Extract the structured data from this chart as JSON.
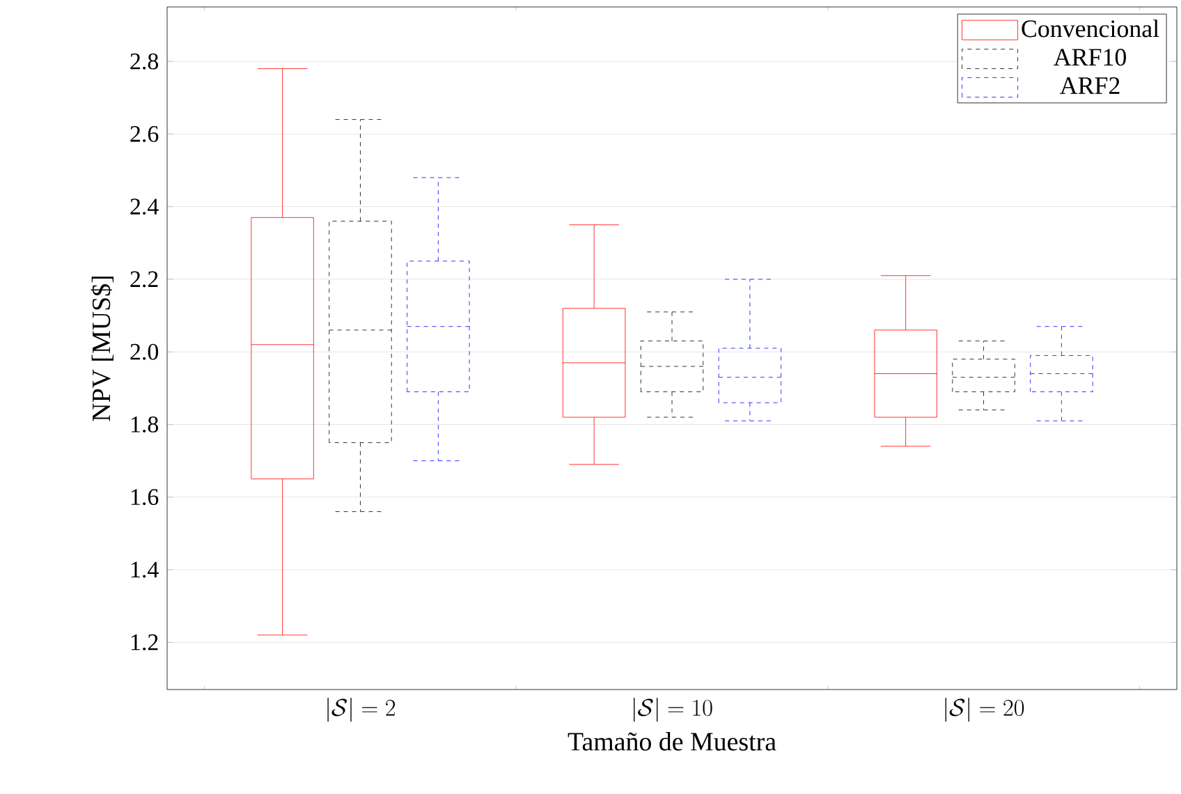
{
  "chart_data": {
    "type": "box",
    "xlabel": "Tamaño de Muestra",
    "ylabel": "NPV [MUS$]",
    "categories": [
      "|\\mathcal{S}| = 2",
      "|\\mathcal{S}| = 10",
      "|\\mathcal{S}|= 20"
    ],
    "ylim": [
      1.07,
      2.95
    ],
    "yticks": [
      1.2,
      1.4,
      1.6,
      1.8,
      {
        "value": 2,
        "label": "2.0"
      },
      2.2,
      2.4,
      2.6,
      2.8
    ],
    "grid": "y",
    "legend": "top right",
    "series": [
      {
        "name": "Convencional",
        "color": "#ff0000",
        "line_style": "solid",
        "boxes": [
          {
            "low": 1.22,
            "q1": 1.65,
            "median": 2.02,
            "q3": 2.37,
            "high": 2.78
          },
          {
            "low": 1.69,
            "q1": 1.82,
            "median": 1.97,
            "q3": 2.12,
            "high": 2.35
          },
          {
            "low": 1.74,
            "q1": 1.82,
            "median": 1.94,
            "q3": 2.06,
            "high": 2.21
          }
        ]
      },
      {
        "name": "ARF10",
        "color": "#000000",
        "line_style": "dashed",
        "boxes": [
          {
            "low": 1.56,
            "q1": 1.75,
            "median": 2.06,
            "q3": 2.36,
            "high": 2.64
          },
          {
            "low": 1.82,
            "q1": 1.89,
            "median": 1.96,
            "q3": 2.03,
            "high": 2.11
          },
          {
            "low": 1.84,
            "q1": 1.89,
            "median": 1.93,
            "q3": 1.98,
            "high": 2.03
          }
        ]
      },
      {
        "name": "ARF2",
        "color": "#0000ff",
        "line_style": "dashed",
        "boxes": [
          {
            "low": 1.7,
            "q1": 1.89,
            "median": 2.07,
            "q3": 2.25,
            "high": 2.48
          },
          {
            "low": 1.81,
            "q1": 1.86,
            "median": 1.93,
            "q3": 2.01,
            "high": 2.2
          },
          {
            "low": 1.81,
            "q1": 1.89,
            "median": 1.94,
            "q3": 1.99,
            "high": 2.07
          }
        ]
      }
    ]
  }
}
